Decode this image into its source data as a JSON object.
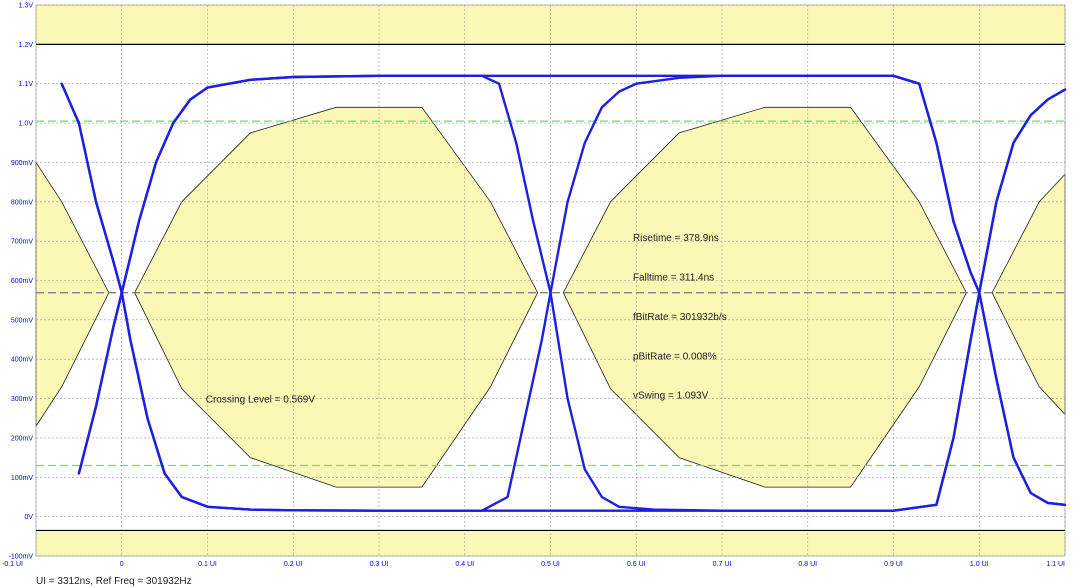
{
  "chart_data": {
    "type": "line",
    "title": "",
    "xlabel": "",
    "ylabel": "",
    "x_unit": "UI",
    "y_unit": "V",
    "xlim": [
      -0.1,
      1.1
    ],
    "ylim": [
      -0.1,
      1.3
    ],
    "grid": true,
    "x_ticks": [
      -0.1,
      0,
      0.1,
      0.2,
      0.3,
      0.4,
      0.5,
      0.6,
      0.7,
      0.8,
      0.9,
      1.0,
      1.1
    ],
    "x_tick_labels": [
      "-0.1 UI",
      "0",
      "0.1 UI",
      "0.2 UI",
      "0.3 UI",
      "0.4 UI",
      "0.5 UI",
      "0.6 UI",
      "0.7 UI",
      "0.8 UI",
      "0.9 UI",
      "1.0 UI",
      "1.1 UI"
    ],
    "y_ticks": [
      -0.1,
      0,
      0.1,
      0.2,
      0.3,
      0.4,
      0.5,
      0.6,
      0.7,
      0.8,
      0.9,
      1.0,
      1.1,
      1.2,
      1.3
    ],
    "y_tick_labels": [
      "-100mV",
      "0V",
      "100mV",
      "200mV",
      "300mV",
      "400mV",
      "500mV",
      "600mV",
      "700mV",
      "800mV",
      "900mV",
      "1.0V",
      "1.1V",
      "1.2V",
      "1.3V"
    ],
    "levels": {
      "high": 1.12,
      "low": 0.015
    },
    "crossing_level": 0.569,
    "crossing_points_ui": [
      0.0,
      0.5,
      1.0
    ],
    "reference_lines": [
      {
        "y": 1.2,
        "style": "solid",
        "color": "#000000"
      },
      {
        "y": -0.035,
        "style": "solid",
        "color": "#000000"
      },
      {
        "y": 0.569,
        "style": "dashed",
        "color": "#808080"
      },
      {
        "y": 1.005,
        "style": "dashed",
        "color": "#6fdc6f"
      },
      {
        "y": 0.13,
        "style": "dashed",
        "color": "#6fdc6f"
      }
    ],
    "limit_bands": [
      {
        "name": "upper",
        "from": 1.2,
        "to": 1.3
      },
      {
        "name": "lower",
        "from": -0.1,
        "to": -0.035
      }
    ],
    "eye_masks": [
      {
        "name": "mask-left",
        "points": [
          [
            -0.1,
            0.9
          ],
          [
            -0.07,
            0.8
          ],
          [
            -0.015,
            0.569
          ],
          [
            -0.07,
            0.33
          ],
          [
            -0.1,
            0.23
          ]
        ]
      },
      {
        "name": "mask-center-1",
        "points": [
          [
            0.015,
            0.569
          ],
          [
            0.07,
            0.8
          ],
          [
            0.15,
            0.975
          ],
          [
            0.25,
            1.04
          ],
          [
            0.35,
            1.04
          ],
          [
            0.43,
            0.8
          ],
          [
            0.485,
            0.569
          ],
          [
            0.43,
            0.33
          ],
          [
            0.35,
            0.075
          ],
          [
            0.25,
            0.075
          ],
          [
            0.15,
            0.15
          ],
          [
            0.07,
            0.325
          ]
        ]
      },
      {
        "name": "mask-center-2",
        "points": [
          [
            0.515,
            0.569
          ],
          [
            0.57,
            0.8
          ],
          [
            0.65,
            0.975
          ],
          [
            0.75,
            1.04
          ],
          [
            0.85,
            1.04
          ],
          [
            0.93,
            0.8
          ],
          [
            0.985,
            0.569
          ],
          [
            0.93,
            0.33
          ],
          [
            0.85,
            0.075
          ],
          [
            0.75,
            0.075
          ],
          [
            0.65,
            0.15
          ],
          [
            0.57,
            0.325
          ]
        ]
      },
      {
        "name": "mask-right",
        "points": [
          [
            1.1,
            0.87
          ],
          [
            1.07,
            0.8
          ],
          [
            1.015,
            0.569
          ],
          [
            1.07,
            0.33
          ],
          [
            1.1,
            0.26
          ]
        ]
      }
    ],
    "series": [
      {
        "points": [
          [
            -0.07,
            1.1
          ],
          [
            -0.05,
            1.0
          ],
          [
            -0.03,
            0.8
          ],
          [
            -0.01,
            0.65
          ],
          [
            0.0,
            0.569
          ],
          [
            0.01,
            0.45
          ],
          [
            0.03,
            0.25
          ],
          [
            0.05,
            0.11
          ],
          [
            0.07,
            0.05
          ],
          [
            0.1,
            0.025
          ],
          [
            0.15,
            0.018
          ],
          [
            0.2,
            0.016
          ],
          [
            0.3,
            0.015
          ],
          [
            0.45,
            0.015
          ],
          [
            0.9,
            0.015
          ],
          [
            0.95,
            0.03
          ],
          [
            0.97,
            0.2
          ],
          [
            0.99,
            0.45
          ],
          [
            1.0,
            0.569
          ],
          [
            1.02,
            0.8
          ],
          [
            1.04,
            0.95
          ],
          [
            1.06,
            1.02
          ],
          [
            1.08,
            1.06
          ],
          [
            1.1,
            1.085
          ]
        ]
      },
      {
        "points": [
          [
            -0.05,
            0.11
          ],
          [
            -0.03,
            0.28
          ],
          [
            -0.01,
            0.48
          ],
          [
            0.0,
            0.569
          ],
          [
            0.02,
            0.75
          ],
          [
            0.04,
            0.9
          ],
          [
            0.06,
            1.0
          ],
          [
            0.08,
            1.06
          ],
          [
            0.1,
            1.09
          ],
          [
            0.15,
            1.11
          ],
          [
            0.2,
            1.117
          ],
          [
            0.3,
            1.12
          ],
          [
            0.45,
            1.12
          ],
          [
            0.9,
            1.12
          ],
          [
            0.93,
            1.1
          ],
          [
            0.95,
            0.95
          ],
          [
            0.97,
            0.75
          ],
          [
            0.99,
            0.62
          ],
          [
            1.0,
            0.569
          ],
          [
            1.02,
            0.35
          ],
          [
            1.04,
            0.15
          ],
          [
            1.06,
            0.06
          ],
          [
            1.08,
            0.035
          ],
          [
            1.1,
            0.03
          ]
        ]
      },
      {
        "points": [
          [
            -0.07,
            1.1
          ],
          [
            -0.05,
            1.0
          ],
          [
            -0.03,
            0.8
          ],
          [
            -0.01,
            0.65
          ],
          [
            0.0,
            0.569
          ],
          [
            0.01,
            0.45
          ],
          [
            0.03,
            0.25
          ],
          [
            0.05,
            0.11
          ],
          [
            0.07,
            0.05
          ],
          [
            0.1,
            0.025
          ],
          [
            0.15,
            0.018
          ],
          [
            0.2,
            0.016
          ],
          [
            0.3,
            0.015
          ],
          [
            0.42,
            0.015
          ],
          [
            0.45,
            0.05
          ],
          [
            0.47,
            0.25
          ],
          [
            0.49,
            0.45
          ],
          [
            0.5,
            0.569
          ],
          [
            0.52,
            0.8
          ],
          [
            0.54,
            0.95
          ],
          [
            0.56,
            1.04
          ],
          [
            0.58,
            1.08
          ],
          [
            0.6,
            1.1
          ],
          [
            0.65,
            1.115
          ],
          [
            0.7,
            1.12
          ],
          [
            0.9,
            1.12
          ],
          [
            0.93,
            1.1
          ],
          [
            0.95,
            0.95
          ],
          [
            0.97,
            0.75
          ],
          [
            0.99,
            0.62
          ],
          [
            1.0,
            0.569
          ],
          [
            1.02,
            0.35
          ],
          [
            1.04,
            0.15
          ],
          [
            1.06,
            0.06
          ],
          [
            1.08,
            0.035
          ],
          [
            1.1,
            0.03
          ]
        ]
      },
      {
        "points": [
          [
            -0.05,
            0.11
          ],
          [
            -0.03,
            0.28
          ],
          [
            -0.01,
            0.48
          ],
          [
            0.0,
            0.569
          ],
          [
            0.02,
            0.75
          ],
          [
            0.04,
            0.9
          ],
          [
            0.06,
            1.0
          ],
          [
            0.08,
            1.06
          ],
          [
            0.1,
            1.09
          ],
          [
            0.15,
            1.11
          ],
          [
            0.2,
            1.117
          ],
          [
            0.3,
            1.12
          ],
          [
            0.42,
            1.12
          ],
          [
            0.44,
            1.1
          ],
          [
            0.46,
            0.95
          ],
          [
            0.48,
            0.75
          ],
          [
            0.5,
            0.569
          ],
          [
            0.52,
            0.3
          ],
          [
            0.54,
            0.12
          ],
          [
            0.56,
            0.05
          ],
          [
            0.58,
            0.025
          ],
          [
            0.62,
            0.018
          ],
          [
            0.7,
            0.015
          ],
          [
            0.9,
            0.015
          ],
          [
            0.95,
            0.03
          ],
          [
            0.97,
            0.2
          ],
          [
            0.99,
            0.45
          ],
          [
            1.0,
            0.569
          ],
          [
            1.02,
            0.8
          ],
          [
            1.04,
            0.95
          ],
          [
            1.06,
            1.02
          ],
          [
            1.08,
            1.06
          ],
          [
            1.1,
            1.085
          ]
        ]
      }
    ],
    "annotations": [
      {
        "name": "crossing-level",
        "text": "Crossing Level = 0.569V",
        "x": 0.0,
        "y": 0.3
      },
      {
        "name": "risetime",
        "text": "Risetime = 378.9ns",
        "x": 0.56,
        "y": 0.71
      },
      {
        "name": "falltime",
        "text": "Falltime = 311.4ns",
        "x": 0.56,
        "y": 0.61
      },
      {
        "name": "fbitrate",
        "text": "fBitRate = 301932b/s",
        "x": 0.56,
        "y": 0.51
      },
      {
        "name": "pbitrate",
        "text": "pBitRate = 0.008%",
        "x": 0.56,
        "y": 0.41
      },
      {
        "name": "vswing",
        "text": "vSwing = 1.093V",
        "x": 0.56,
        "y": 0.31
      }
    ],
    "footer": "UI = 3312ns, Ref Freq = 301932Hz"
  },
  "colors": {
    "mask_fill": "#fbf7b5",
    "band_fill": "#fbf7b5",
    "trace": "#1f1fe0",
    "grid": "#9a9a9a",
    "tick_text": "#0000ff"
  }
}
